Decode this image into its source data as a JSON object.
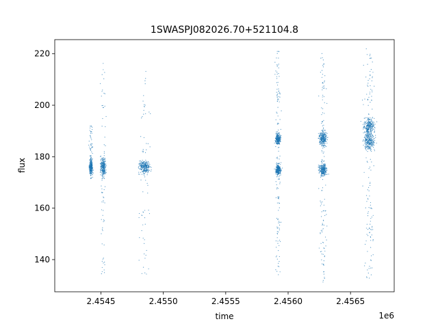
{
  "chart_data": {
    "type": "scatter",
    "title": "1SWASPJ082026.70+521104.8",
    "xlabel": "time",
    "ylabel": "flux",
    "x_offset_label": "1e6",
    "x_ticks": [
      {
        "value": 2.4545,
        "label": "2.4545"
      },
      {
        "value": 2.455,
        "label": "2.4550"
      },
      {
        "value": 2.4555,
        "label": "2.4555"
      },
      {
        "value": 2.456,
        "label": "2.4560"
      },
      {
        "value": 2.4565,
        "label": "2.4565"
      }
    ],
    "y_ticks": [
      {
        "value": 140,
        "label": "140"
      },
      {
        "value": 160,
        "label": "160"
      },
      {
        "value": 180,
        "label": "180"
      },
      {
        "value": 200,
        "label": "200"
      },
      {
        "value": 220,
        "label": "220"
      }
    ],
    "xlim": [
      2.45413,
      2.45685
    ],
    "ylim": [
      127.5,
      225.5
    ],
    "grid": false,
    "marker_color": "#1f77b4",
    "series": [
      {
        "name": "",
        "groups": [
          {
            "x": 2.45442,
            "x_spread": 2e-05,
            "y_center": 176,
            "y_spread": 3,
            "y_min": 170,
            "y_max": 192
          },
          {
            "x": 2.45452,
            "x_spread": 3e-05,
            "y_center": 176,
            "y_spread": 4,
            "y_min": 133,
            "y_max": 217
          },
          {
            "x": 2.45485,
            "x_spread": 6e-05,
            "y_center": 176,
            "y_spread": 3,
            "y_min": 134,
            "y_max": 215
          },
          {
            "x": 2.45592,
            "x_spread": 3e-05,
            "y_center": 175,
            "y_spread": 2.5,
            "y_min": 133,
            "y_max": 221
          },
          {
            "x": 2.45592,
            "x_spread": 3e-05,
            "y_center": 187,
            "y_spread": 2.5,
            "y_min": 133,
            "y_max": 221
          },
          {
            "x": 2.45628,
            "x_spread": 4e-05,
            "y_center": 175,
            "y_spread": 3,
            "y_min": 131,
            "y_max": 221
          },
          {
            "x": 2.45628,
            "x_spread": 4e-05,
            "y_center": 187,
            "y_spread": 3,
            "y_min": 131,
            "y_max": 221
          },
          {
            "x": 2.45665,
            "x_spread": 6e-05,
            "y_center": 192,
            "y_spread": 4,
            "y_min": 132,
            "y_max": 222
          },
          {
            "x": 2.45665,
            "x_spread": 6e-05,
            "y_center": 186,
            "y_spread": 4,
            "y_min": 132,
            "y_max": 222
          }
        ]
      }
    ]
  }
}
